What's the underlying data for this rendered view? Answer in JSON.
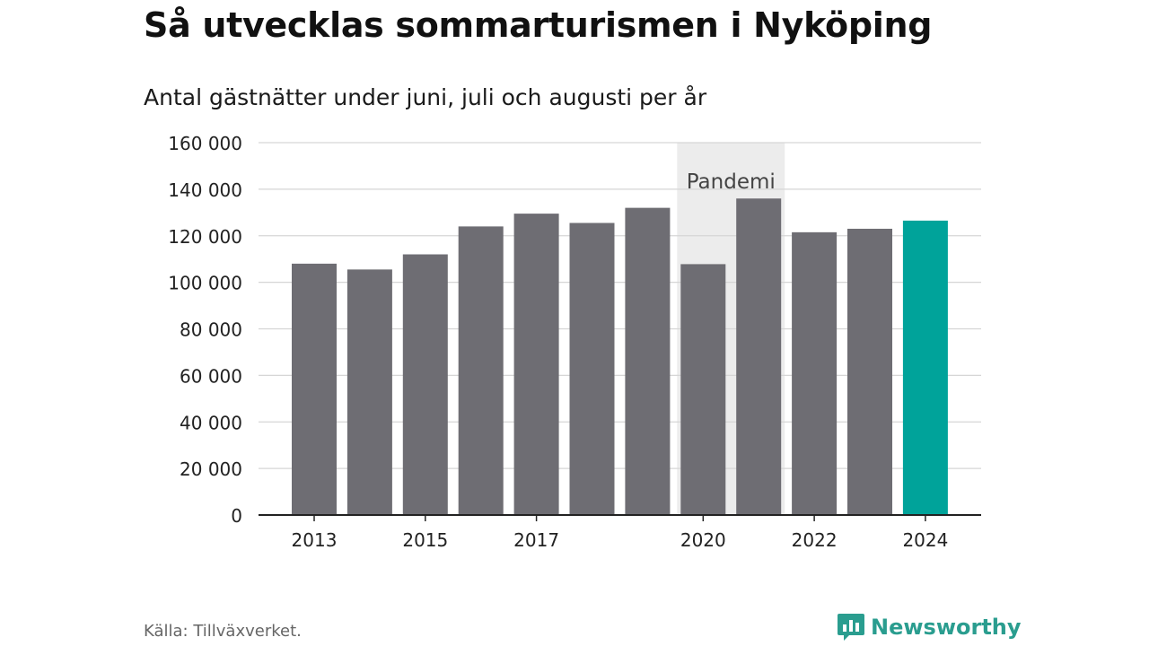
{
  "header": {
    "title": "Så utvecklas sommarturismen i Nyköping",
    "subtitle": "Antal gästnätter under juni, juli och augusti per år"
  },
  "footer": {
    "source": "Källa: Tillväxverket.",
    "brand": "Newsworthy"
  },
  "colors": {
    "bar": "#6e6d73",
    "highlight": "#00a39a",
    "band": "#ececec",
    "grid": "#d6d6d6",
    "axis": "#222222",
    "brand": "#2a9d8f"
  },
  "chart_data": {
    "type": "bar",
    "title": "Så utvecklas sommarturismen i Nyköping",
    "subtitle": "Antal gästnätter under juni, juli och augusti per år",
    "xlabel": "",
    "ylabel": "",
    "categories": [
      "2013",
      "2014",
      "2015",
      "2016",
      "2017",
      "2018",
      "2019",
      "2020",
      "2021",
      "2022",
      "2023",
      "2024"
    ],
    "values": [
      108000,
      105500,
      112000,
      124000,
      129500,
      125500,
      132000,
      107800,
      136000,
      121500,
      123000,
      126500
    ],
    "highlight_category": "2024",
    "xtick_labels": [
      "2013",
      "2015",
      "2017",
      "2020",
      "2022",
      "2024"
    ],
    "ylim": [
      0,
      160000
    ],
    "yticks": [
      0,
      20000,
      40000,
      60000,
      80000,
      100000,
      120000,
      140000,
      160000
    ],
    "ytick_labels": [
      "0",
      "20 000",
      "40 000",
      "60 000",
      "80 000",
      "100 000",
      "120 000",
      "140 000",
      "160 000"
    ],
    "grid": true,
    "annotation": {
      "label": "Pandemi",
      "from": "2020",
      "to": "2021"
    }
  }
}
